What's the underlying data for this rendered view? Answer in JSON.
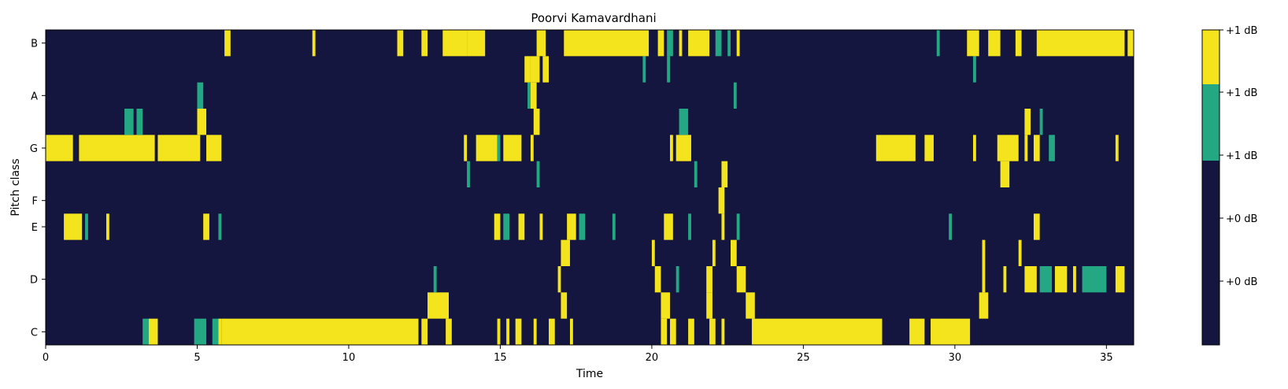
{
  "chart_data": [
    {
      "type": "heatmap",
      "title": "Poorvi Kamavardhani",
      "xlabel": "Time",
      "ylabel": "Pitch class",
      "xlim": [
        0,
        35.9
      ],
      "x_ticks": [
        0,
        5,
        10,
        15,
        20,
        25,
        30,
        35
      ],
      "y_tick_labels": [
        "C",
        "D",
        "E",
        "F",
        "G",
        "A",
        "B"
      ],
      "rows": [
        "C",
        "C#",
        "D",
        "D#",
        "E",
        "F",
        "F#",
        "G",
        "G#",
        "A",
        "A#",
        "B"
      ],
      "value_levels": {
        "background": 0,
        "mid": 0.6,
        "high": 1
      },
      "colors": {
        "background": "#14163f",
        "mid": "#24a884",
        "high": "#f4e41e"
      },
      "grid": false,
      "cells": {
        "C": [
          [
            3.2,
            3.4,
            0.6
          ],
          [
            3.4,
            3.7,
            1
          ],
          [
            4.9,
            5.3,
            0.6
          ],
          [
            5.5,
            5.7,
            0.6
          ],
          [
            5.7,
            5.8,
            1
          ],
          [
            5.8,
            12.3,
            1
          ],
          [
            12.4,
            12.6,
            1
          ],
          [
            13.2,
            13.4,
            1
          ],
          [
            14.9,
            15.0,
            1
          ],
          [
            15.2,
            15.3,
            1
          ],
          [
            15.5,
            15.7,
            1
          ],
          [
            16.1,
            16.2,
            1
          ],
          [
            16.6,
            16.8,
            1
          ],
          [
            17.3,
            17.4,
            1
          ],
          [
            20.3,
            20.5,
            1
          ],
          [
            20.6,
            20.8,
            1
          ],
          [
            21.2,
            21.4,
            1
          ],
          [
            21.9,
            22.1,
            1
          ],
          [
            22.3,
            22.4,
            1
          ],
          [
            23.3,
            27.6,
            1
          ],
          [
            28.5,
            29.0,
            1
          ],
          [
            29.2,
            30.5,
            1
          ]
        ],
        "C#": [
          [
            12.6,
            13.3,
            1
          ],
          [
            17.0,
            17.2,
            1
          ],
          [
            20.3,
            20.6,
            1
          ],
          [
            21.8,
            22.0,
            1
          ],
          [
            23.1,
            23.4,
            1
          ],
          [
            30.8,
            31.1,
            1
          ]
        ],
        "D": [
          [
            12.8,
            12.9,
            0.6
          ],
          [
            16.9,
            17.0,
            1
          ],
          [
            20.1,
            20.3,
            1
          ],
          [
            20.8,
            20.9,
            0.6
          ],
          [
            21.8,
            22.0,
            1
          ],
          [
            22.8,
            23.1,
            1
          ],
          [
            30.9,
            31.0,
            1
          ],
          [
            31.6,
            31.7,
            1
          ],
          [
            32.3,
            32.7,
            1
          ],
          [
            32.8,
            33.2,
            0.6
          ],
          [
            33.3,
            33.7,
            1
          ],
          [
            33.9,
            34.0,
            1
          ],
          [
            34.2,
            35.0,
            0.6
          ],
          [
            35.3,
            35.6,
            1
          ]
        ],
        "D#": [
          [
            17.0,
            17.3,
            1
          ],
          [
            20.0,
            20.1,
            1
          ],
          [
            22.0,
            22.1,
            1
          ],
          [
            22.6,
            22.8,
            1
          ],
          [
            30.9,
            31.0,
            1
          ],
          [
            32.1,
            32.2,
            1
          ]
        ],
        "E": [
          [
            0.6,
            1.2,
            1
          ],
          [
            1.3,
            1.4,
            0.6
          ],
          [
            2.0,
            2.1,
            1
          ],
          [
            5.2,
            5.4,
            1
          ],
          [
            5.7,
            5.8,
            0.6
          ],
          [
            14.8,
            15.0,
            1
          ],
          [
            15.1,
            15.3,
            0.6
          ],
          [
            15.6,
            15.8,
            1
          ],
          [
            16.3,
            16.4,
            1
          ],
          [
            17.2,
            17.5,
            1
          ],
          [
            17.6,
            17.8,
            0.6
          ],
          [
            18.7,
            18.8,
            0.6
          ],
          [
            20.4,
            20.7,
            1
          ],
          [
            21.2,
            21.3,
            0.6
          ],
          [
            22.3,
            22.4,
            1
          ],
          [
            22.8,
            22.9,
            0.6
          ],
          [
            29.8,
            29.9,
            0.6
          ],
          [
            32.6,
            32.8,
            1
          ]
        ],
        "F": [
          [
            22.2,
            22.4,
            1
          ]
        ],
        "F#": [
          [
            13.9,
            14.0,
            0.6
          ],
          [
            16.2,
            16.3,
            0.6
          ],
          [
            21.4,
            21.5,
            0.6
          ],
          [
            22.3,
            22.5,
            1
          ],
          [
            31.5,
            31.8,
            1
          ]
        ],
        "G": [
          [
            0,
            0.9,
            1
          ],
          [
            1.1,
            3.6,
            1
          ],
          [
            3.7,
            5.1,
            1
          ],
          [
            5.3,
            5.8,
            1
          ],
          [
            13.8,
            13.9,
            1
          ],
          [
            14.2,
            14.9,
            1
          ],
          [
            14.9,
            15.0,
            0.6
          ],
          [
            15.1,
            15.7,
            1
          ],
          [
            16.0,
            16.1,
            1
          ],
          [
            20.6,
            20.7,
            1
          ],
          [
            20.8,
            21.3,
            1
          ],
          [
            27.4,
            27.6,
            1
          ],
          [
            27.6,
            28.7,
            1
          ],
          [
            29.0,
            29.3,
            1
          ],
          [
            30.6,
            30.7,
            1
          ],
          [
            31.4,
            32.1,
            1
          ],
          [
            32.3,
            32.4,
            1
          ],
          [
            32.6,
            32.8,
            1
          ],
          [
            33.1,
            33.3,
            0.6
          ],
          [
            35.3,
            35.4,
            1
          ]
        ],
        "G#": [
          [
            2.6,
            2.9,
            0.6
          ],
          [
            3.0,
            3.2,
            0.6
          ],
          [
            5.0,
            5.3,
            1
          ],
          [
            16.1,
            16.3,
            1
          ],
          [
            20.9,
            21.2,
            0.6
          ],
          [
            32.3,
            32.5,
            1
          ],
          [
            32.8,
            32.9,
            0.6
          ]
        ],
        "A": [
          [
            5.0,
            5.2,
            0.6
          ],
          [
            15.9,
            16.0,
            0.6
          ],
          [
            16.0,
            16.2,
            1
          ],
          [
            22.7,
            22.8,
            0.6
          ]
        ],
        "A#": [
          [
            15.8,
            16.0,
            1
          ],
          [
            16.0,
            16.3,
            1
          ],
          [
            16.4,
            16.6,
            1
          ],
          [
            19.7,
            19.8,
            0.6
          ],
          [
            20.5,
            20.6,
            0.6
          ],
          [
            30.6,
            30.7,
            0.6
          ]
        ],
        "B": [
          [
            5.9,
            6.1,
            1
          ],
          [
            8.8,
            8.9,
            1
          ],
          [
            11.6,
            11.8,
            1
          ],
          [
            12.4,
            12.6,
            1
          ],
          [
            13.1,
            13.9,
            1
          ],
          [
            13.9,
            14.5,
            1
          ],
          [
            16.2,
            16.5,
            1
          ],
          [
            17.1,
            19.9,
            1
          ],
          [
            20.2,
            20.4,
            1
          ],
          [
            20.5,
            20.7,
            0.6
          ],
          [
            20.9,
            21.0,
            1
          ],
          [
            21.2,
            21.9,
            1
          ],
          [
            22.1,
            22.3,
            0.6
          ],
          [
            22.5,
            22.6,
            0.6
          ],
          [
            22.8,
            22.9,
            1
          ],
          [
            29.4,
            29.5,
            0.6
          ],
          [
            30.4,
            30.8,
            1
          ],
          [
            31.1,
            31.5,
            1
          ],
          [
            32.0,
            32.2,
            1
          ],
          [
            32.7,
            35.6,
            1
          ],
          [
            35.7,
            35.9,
            1
          ]
        ]
      }
    },
    {
      "type": "colorbar",
      "tick_labels": [
        "+1 dB",
        "+1 dB",
        "+1 dB",
        "+0 dB",
        "+0 dB"
      ],
      "colors": {
        "top": "#f4e41e",
        "middle": "#24a884",
        "bottom": "#14163f"
      }
    }
  ]
}
